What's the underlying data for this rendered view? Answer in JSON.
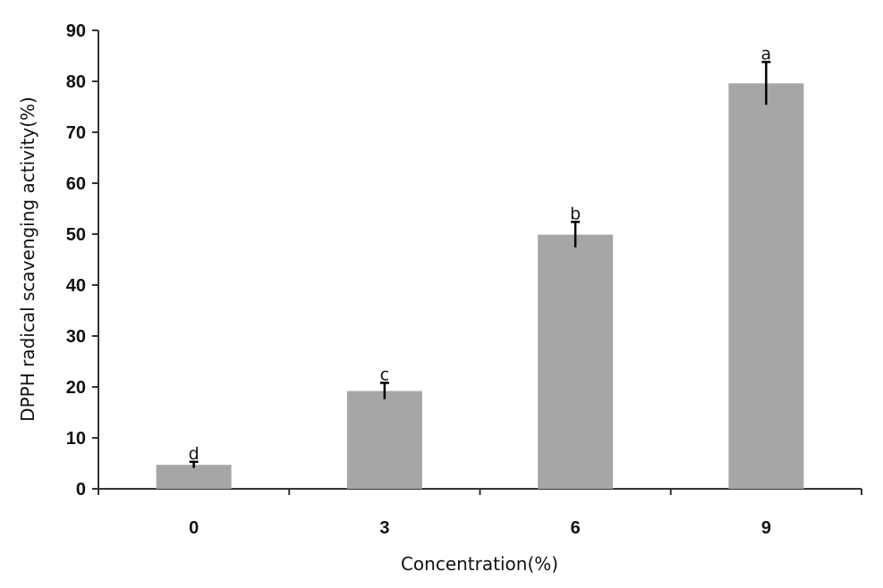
{
  "chart_data": {
    "type": "bar",
    "categories": [
      "0",
      "3",
      "6",
      "9"
    ],
    "values": [
      4.7,
      19.2,
      49.9,
      79.6
    ],
    "errors": [
      0.6,
      1.6,
      2.5,
      4.2
    ],
    "significance_labels": [
      "d",
      "c",
      "b",
      "a"
    ],
    "xlabel": "Concentration(%)",
    "ylabel": "DPPH radical scavenging activity(%)",
    "ylim": [
      0,
      90
    ],
    "yticks": [
      "0",
      "10",
      "20",
      "30",
      "40",
      "50",
      "60",
      "70",
      "80",
      "90"
    ],
    "bar_color": "#a6a6a6",
    "grid": false,
    "legend": "none"
  }
}
